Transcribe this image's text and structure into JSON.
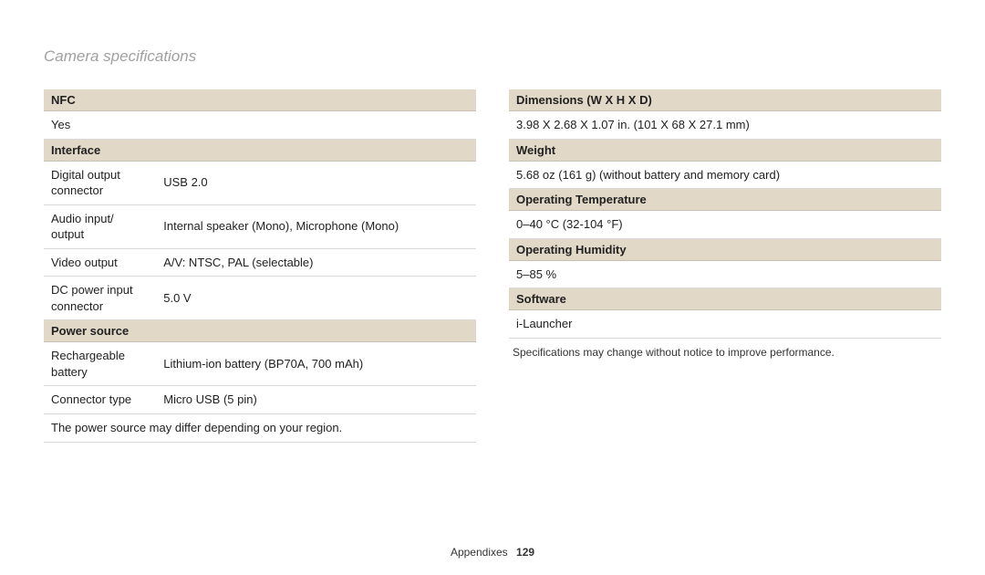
{
  "pageTitle": "Camera specifications",
  "left": {
    "h1": "NFC",
    "nfcValue": "Yes",
    "h2": "Interface",
    "if1l": "Digital output connector",
    "if1v": "USB 2.0",
    "if2l": "Audio input/ output",
    "if2v": "Internal speaker (Mono), Microphone (Mono)",
    "if3l": "Video output",
    "if3v": "A/V: NTSC, PAL (selectable)",
    "if4l": "DC power input connector",
    "if4v": "5.0 V",
    "h3": "Power source",
    "ps1l": "Rechargeable battery",
    "ps1v": "Lithium-ion battery (BP70A, 700 mAh)",
    "ps2l": "Connector type",
    "ps2v": "Micro USB (5 pin)",
    "psNote": "The power source may differ depending on your region."
  },
  "right": {
    "h1": "Dimensions (W X H X D)",
    "v1": "3.98 X 2.68 X 1.07 in. (101 X 68 X 27.1 mm)",
    "h2": "Weight",
    "v2": "5.68 oz (161 g) (without battery and memory card)",
    "h3": "Operating Temperature",
    "v3": "0–40 °C (32-104 °F)",
    "h4": "Operating Humidity",
    "v4": "5–85 %",
    "h5": "Software",
    "v5": "i-Launcher",
    "footnote": "Specifications may change without notice to improve performance."
  },
  "footer": {
    "section": "Appendixes",
    "page": "129"
  },
  "colors": {
    "headerBg": "#e2d8c8",
    "titleColor": "#a0a0a0",
    "rowBorder": "#d9d9d9"
  }
}
